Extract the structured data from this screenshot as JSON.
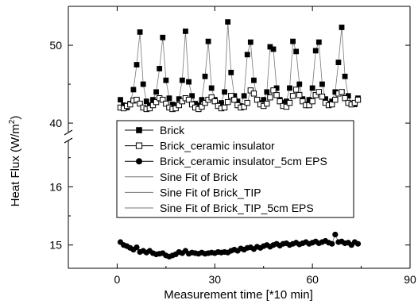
{
  "chart_data": {
    "type": "scatter",
    "xlabel": "Measurement time [*10 min]",
    "ylabel": "Heat Flux (W/m²)",
    "ylabel_parts": {
      "text": "Heat Flux (W/m",
      "superscript": "2",
      "close": ")"
    },
    "x_axis": {
      "min": -15,
      "max": 90,
      "ticks": [
        0,
        30,
        60,
        90
      ],
      "tick_labels": [
        "0",
        "30",
        "60",
        "90"
      ]
    },
    "y_axis_broken": true,
    "y_upper_segment": {
      "min": 39.5,
      "max": 55,
      "ticks": [
        40,
        50
      ],
      "tick_labels": [
        "40",
        "50"
      ]
    },
    "y_lower_segment": {
      "min": 14.6,
      "max": 16.7,
      "ticks": [
        15,
        16
      ],
      "tick_labels": [
        "15",
        "16"
      ]
    },
    "legend": [
      {
        "label": "Brick",
        "marker": "filled-square"
      },
      {
        "label": "Brick_ceramic insulator",
        "marker": "open-square"
      },
      {
        "label": "Brick_ceramic insulator_5cm EPS",
        "marker": "filled-circle"
      },
      {
        "label": "Sine Fit of Brick",
        "marker": "line"
      },
      {
        "label": "Sine Fit of Brick_TIP",
        "marker": "line"
      },
      {
        "label": "Sine Fit of Brick_TIP_5cm EPS",
        "marker": "line"
      }
    ],
    "series": [
      {
        "name": "Brick",
        "marker": "filled-square",
        "x": [
          1,
          2,
          3,
          4,
          5,
          6,
          7,
          8,
          9,
          10,
          11,
          12,
          13,
          14,
          15,
          16,
          17,
          18,
          19,
          20,
          21,
          22,
          23,
          24,
          25,
          26,
          27,
          28,
          29,
          30,
          31,
          32,
          33,
          34,
          35,
          36,
          37,
          38,
          39,
          40,
          41,
          42,
          43,
          44,
          45,
          46,
          47,
          48,
          49,
          50,
          51,
          52,
          53,
          54,
          55,
          56,
          57,
          58,
          59,
          60,
          61,
          62,
          63,
          64,
          65,
          66,
          67,
          68,
          69,
          70,
          71,
          72,
          73,
          74
        ],
        "y": [
          43.0,
          42.3,
          42.0,
          42.5,
          44.3,
          47.5,
          51.7,
          45.0,
          42.8,
          42.3,
          43.0,
          44.0,
          47.0,
          51.0,
          45.5,
          43.2,
          42.4,
          42.3,
          43.1,
          45.5,
          51.8,
          45.3,
          43.5,
          42.5,
          42.3,
          43.0,
          46.0,
          50.5,
          44.5,
          43.0,
          42.3,
          42.6,
          44.0,
          53.0,
          46.5,
          43.5,
          42.8,
          42.2,
          43.5,
          48.8,
          50.4,
          45.5,
          43.0,
          42.6,
          43.0,
          44.0,
          49.8,
          49.5,
          44.5,
          43.0,
          42.6,
          42.8,
          44.5,
          50.5,
          49.2,
          45.0,
          43.1,
          42.4,
          43.0,
          44.5,
          49.3,
          50.4,
          45.0,
          43.1,
          42.5,
          42.8,
          44.0,
          47.8,
          52.3,
          46.0,
          43.5,
          42.5,
          42.4,
          43.2
        ]
      },
      {
        "name": "Brick_ceramic insulator",
        "marker": "open-square",
        "x": [
          1,
          2,
          3,
          4,
          5,
          6,
          7,
          8,
          9,
          10,
          11,
          12,
          13,
          14,
          15,
          16,
          17,
          18,
          19,
          20,
          21,
          22,
          23,
          24,
          25,
          26,
          27,
          28,
          29,
          30,
          31,
          32,
          33,
          34,
          35,
          36,
          37,
          38,
          39,
          40,
          41,
          42,
          43,
          44,
          45,
          46,
          47,
          48,
          49,
          50,
          51,
          52,
          53,
          54,
          55,
          56,
          57,
          58,
          59,
          60,
          61,
          62,
          63,
          64,
          65,
          66,
          67,
          68,
          69,
          70,
          71,
          72,
          73,
          74
        ],
        "y": [
          42.0,
          41.9,
          42.2,
          42.4,
          42.9,
          43.0,
          42.5,
          42.0,
          41.8,
          41.9,
          42.3,
          42.7,
          43.2,
          43.0,
          42.5,
          42.0,
          41.8,
          41.9,
          42.3,
          42.8,
          43.2,
          43.0,
          42.4,
          42.0,
          41.8,
          42.1,
          42.6,
          43.0,
          43.3,
          42.8,
          42.2,
          41.9,
          42.0,
          42.7,
          43.5,
          43.0,
          42.3,
          42.0,
          42.1,
          42.6,
          44.2,
          43.8,
          43.0,
          42.4,
          42.2,
          42.5,
          43.3,
          44.2,
          43.6,
          42.8,
          42.2,
          42.1,
          42.6,
          43.5,
          44.3,
          43.6,
          42.8,
          42.3,
          42.3,
          42.8,
          43.6,
          44.0,
          43.4,
          42.6,
          42.3,
          42.4,
          43.0,
          43.8,
          44.0,
          43.2,
          42.6,
          42.4,
          42.6,
          43.0
        ]
      },
      {
        "name": "Brick_ceramic insulator_5cm EPS",
        "marker": "filled-circle",
        "x": [
          1,
          2,
          3,
          4,
          5,
          6,
          7,
          8,
          9,
          10,
          11,
          12,
          13,
          14,
          15,
          16,
          17,
          18,
          19,
          20,
          21,
          22,
          23,
          24,
          25,
          26,
          27,
          28,
          29,
          30,
          31,
          32,
          33,
          34,
          35,
          36,
          37,
          38,
          39,
          40,
          41,
          42,
          43,
          44,
          45,
          46,
          47,
          48,
          49,
          50,
          51,
          52,
          53,
          54,
          55,
          56,
          57,
          58,
          59,
          60,
          61,
          62,
          63,
          64,
          65,
          66,
          67,
          68,
          69,
          70,
          71,
          72,
          73,
          74
        ],
        "y": [
          15.05,
          15.0,
          14.98,
          14.95,
          14.92,
          14.96,
          14.88,
          14.9,
          14.87,
          14.9,
          14.86,
          14.84,
          14.85,
          14.86,
          14.82,
          14.8,
          14.82,
          14.84,
          14.88,
          14.86,
          14.9,
          14.85,
          14.87,
          14.86,
          14.85,
          14.87,
          14.85,
          14.86,
          14.87,
          14.86,
          14.88,
          14.87,
          14.88,
          14.87,
          14.9,
          14.92,
          14.9,
          14.94,
          14.92,
          14.95,
          14.96,
          14.93,
          14.97,
          14.95,
          14.98,
          15.0,
          14.97,
          15.0,
          15.02,
          14.99,
          15.02,
          15.03,
          15.0,
          15.02,
          15.04,
          15.01,
          15.03,
          15.05,
          15.02,
          15.04,
          15.06,
          15.03,
          15.05,
          15.07,
          15.04,
          15.02,
          15.18,
          15.05,
          15.06,
          15.03,
          15.04,
          15.0,
          15.05,
          15.02
        ]
      }
    ],
    "colors": {
      "axis": "#000000",
      "fit_line": "#777777",
      "background": "#ffffff"
    }
  }
}
